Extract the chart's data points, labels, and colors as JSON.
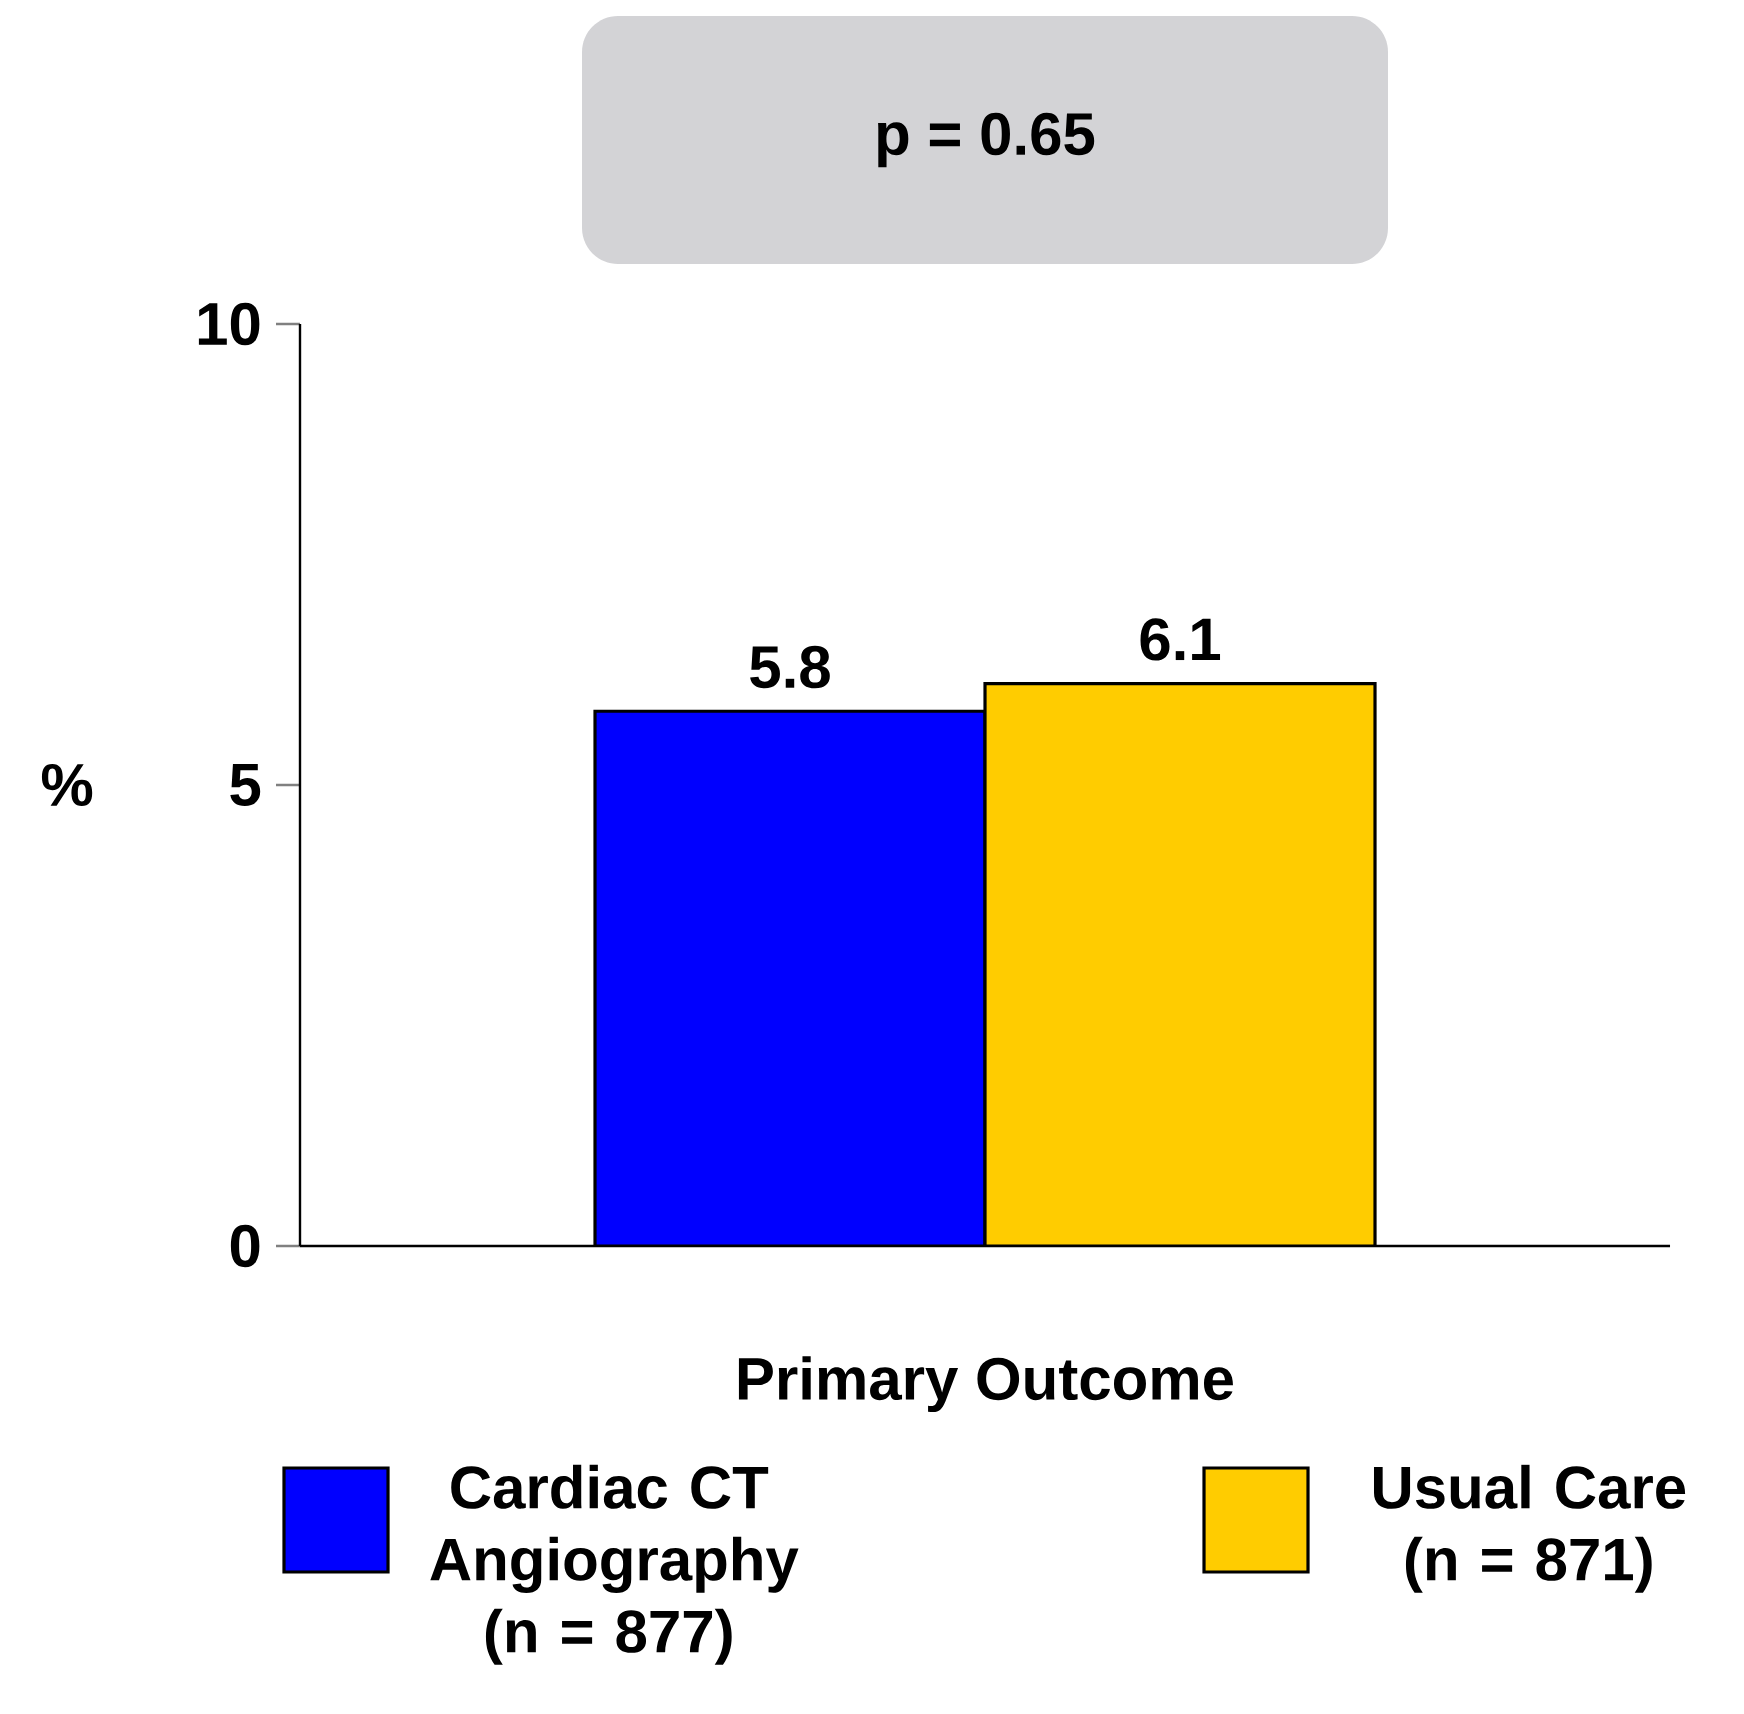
{
  "chart_data": {
    "type": "bar",
    "categories": [
      "Primary Outcome"
    ],
    "ylabel": "%",
    "series": [
      {
        "name": "Cardiac CT Angiography (n = 877)",
        "color": "#0000ff",
        "values": [
          5.8
        ]
      },
      {
        "name": "Usual Care (n = 871)",
        "color": "#ffcc00",
        "values": [
          6.1
        ]
      }
    ],
    "ylim": [
      0,
      10
    ],
    "yticks": [
      0,
      5,
      10
    ],
    "data_labels": true,
    "legend": "bottom",
    "grid": false,
    "annotations": [
      "p = 0.65"
    ]
  }
}
